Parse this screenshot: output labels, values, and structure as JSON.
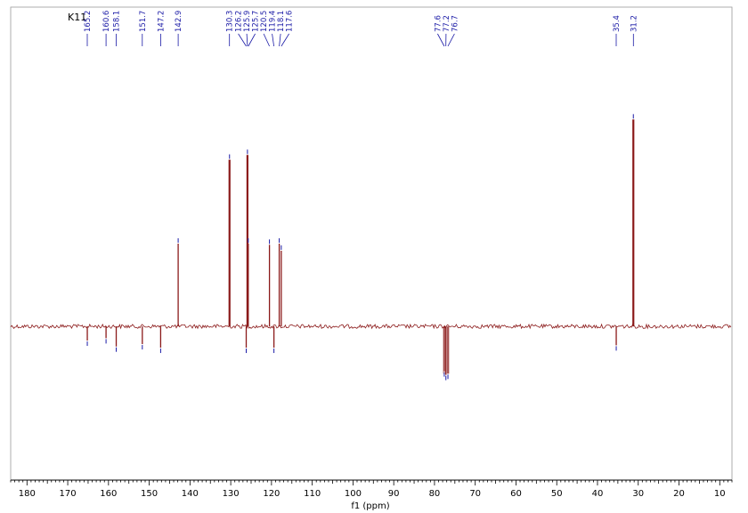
{
  "sample_label": "K11",
  "chart_data": {
    "type": "line",
    "xlabel": "f1 (ppm)",
    "ylabel": "",
    "xlim": [
      184,
      7
    ],
    "x_reversed": true,
    "ylim": [
      -130,
      270
    ],
    "x_ticks": [
      180,
      170,
      160,
      150,
      140,
      130,
      120,
      110,
      100,
      90,
      80,
      70,
      60,
      50,
      40,
      30,
      20,
      10
    ],
    "grid": false,
    "colors": {
      "spectrum": "#8b1a1a",
      "peak_marker": "#1a1aa6",
      "axis": "#000000"
    },
    "series": [
      {
        "peaks": [
          {
            "x": 165.2,
            "y": -12
          },
          {
            "x": 160.6,
            "y": -10
          },
          {
            "x": 158.1,
            "y": -17
          },
          {
            "x": 151.7,
            "y": -15
          },
          {
            "x": 147.2,
            "y": -18
          },
          {
            "x": 142.9,
            "y": 70
          },
          {
            "x": 130.3,
            "y": 141
          },
          {
            "x": 126.2,
            "y": -18
          },
          {
            "x": 125.9,
            "y": 145
          },
          {
            "x": 125.7,
            "y": 70
          },
          {
            "x": 120.5,
            "y": 69
          },
          {
            "x": 119.4,
            "y": -18
          },
          {
            "x": 118.1,
            "y": 70
          },
          {
            "x": 117.6,
            "y": 64
          },
          {
            "x": 77.6,
            "y": -38
          },
          {
            "x": 77.2,
            "y": -41
          },
          {
            "x": 76.7,
            "y": -40
          },
          {
            "x": 35.4,
            "y": -16
          },
          {
            "x": 31.2,
            "y": 175
          }
        ]
      }
    ],
    "peak_labels": [
      "165.2",
      "160.6",
      "158.1",
      "151.7",
      "147.2",
      "142.9",
      "130.3",
      "126.2",
      "125.9",
      "125.7",
      "120.5",
      "119.4",
      "118.1",
      "117.6",
      "77.6",
      "77.2",
      "76.7",
      "35.4",
      "31.2"
    ]
  }
}
